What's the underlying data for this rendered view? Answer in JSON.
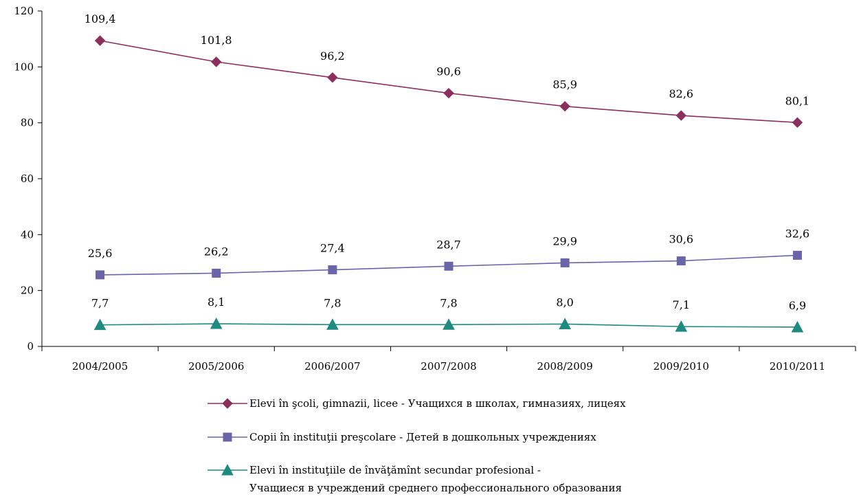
{
  "chart_data": {
    "type": "line",
    "categories": [
      "2004/2005",
      "2005/2006",
      "2006/2007",
      "2007/2008",
      "2008/2009",
      "2009/2010",
      "2010/2011"
    ],
    "ylim": [
      0,
      120
    ],
    "yticks": [
      0,
      20,
      40,
      60,
      80,
      100,
      120
    ],
    "grid": false,
    "legend_position": "bottom",
    "series": [
      {
        "name": "Elevi în şcoli, gimnazii, licee - Учащихся в школах, гимназиях, лицеях",
        "values": [
          109.4,
          101.8,
          96.2,
          90.6,
          85.9,
          82.6,
          80.1
        ],
        "value_labels": [
          "109,4",
          "101,8",
          "96,2",
          "90,6",
          "85,9",
          "82,6",
          "80,1"
        ],
        "color": "#8B2F5E",
        "marker": "diamond"
      },
      {
        "name": "Copii în instituţii preşcolare - Детей в дошкольных учреждениях",
        "values": [
          25.6,
          26.2,
          27.4,
          28.7,
          29.9,
          30.6,
          32.6
        ],
        "value_labels": [
          "25,6",
          "26,2",
          "27,4",
          "28,7",
          "29,9",
          "30,6",
          "32,6"
        ],
        "color": "#6A64A8",
        "marker": "square"
      },
      {
        "name": "Elevi în instituţiile de învăţămînt secundar profesional - ",
        "name_line2": "Учащиеся в учреждений среднего профессионального образования",
        "values": [
          7.7,
          8.1,
          7.8,
          7.8,
          8.0,
          7.1,
          6.9
        ],
        "value_labels": [
          "7,7",
          "8,1",
          "7,8",
          "7,8",
          "8,0",
          "7,1",
          "6,9"
        ],
        "color": "#1E8A80",
        "marker": "triangle"
      }
    ]
  }
}
